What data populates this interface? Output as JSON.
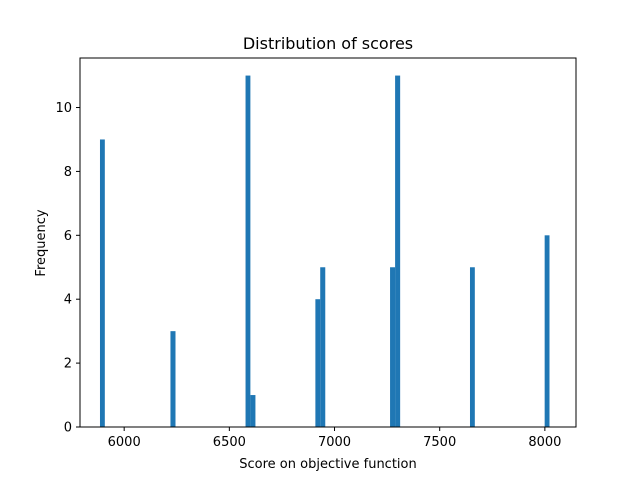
{
  "chart_data": {
    "type": "bar",
    "title": "Distribution of scores",
    "xlabel": "Score on objective function",
    "ylabel": "Frequency",
    "xlim": [
      5790,
      8148
    ],
    "ylim": [
      0,
      11.55
    ],
    "xticks": [
      6000,
      6500,
      7000,
      7500,
      8000
    ],
    "yticks": [
      0,
      2,
      4,
      6,
      8,
      10
    ],
    "grid": false,
    "bar_color": "#1f77b4",
    "bars": [
      {
        "x0": 5885,
        "x1": 5908,
        "count": 9
      },
      {
        "x0": 6220,
        "x1": 6244,
        "count": 3
      },
      {
        "x0": 6577,
        "x1": 6600,
        "count": 11
      },
      {
        "x0": 6600,
        "x1": 6624,
        "count": 1
      },
      {
        "x0": 6909,
        "x1": 6932,
        "count": 4
      },
      {
        "x0": 6932,
        "x1": 6956,
        "count": 5
      },
      {
        "x0": 7264,
        "x1": 7288,
        "count": 5
      },
      {
        "x0": 7288,
        "x1": 7312,
        "count": 11
      },
      {
        "x0": 7644,
        "x1": 7667,
        "count": 5
      },
      {
        "x0": 7999,
        "x1": 8022,
        "count": 6
      }
    ]
  }
}
